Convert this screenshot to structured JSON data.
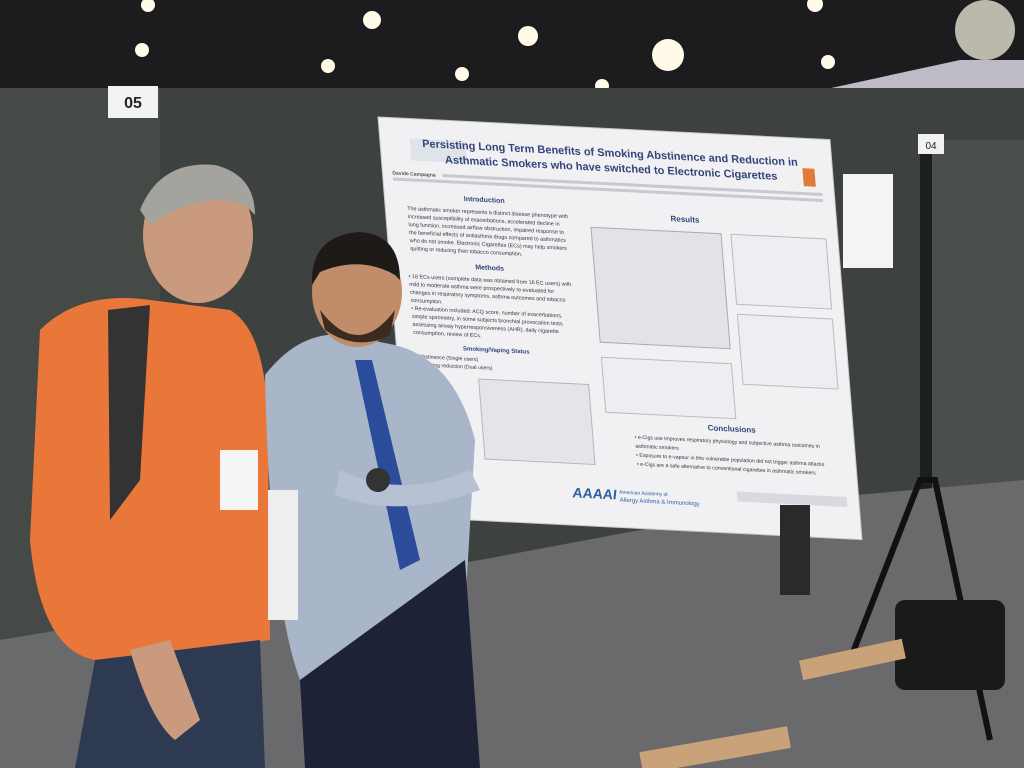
{
  "booth_numbers": [
    "05",
    "04"
  ],
  "poster": {
    "title_lines": [
      "Persisting Long Term Benefits of Smoking Abstinence and Reduction in",
      "Asthmatic Smokers who have switched to Electronic Cigarettes"
    ],
    "first_author": "Davide Campagna",
    "introduction": {
      "heading": "Introduction",
      "lines": [
        "The asthmatic smoker represents a distinct disease phenotype with",
        "increased susceptibility of exacerbations, accelerated decline in",
        "lung function, increased airflow obstruction, impaired response to",
        "the beneficial effects of antiasthma drugs compared to asthmatics",
        "who do not smoke. Electronic Cigarettes (ECs) may help smokers",
        "quitting or reducing their tobacco consumption."
      ]
    },
    "methods": {
      "heading": "Methods",
      "lines": [
        "• 18 ECs users (complete data was obtained from 16 EC users) with",
        "mild to moderate asthma were prospectively re-evaluated for",
        "changes in respiratory symptoms, asthma outcomes and tobacco",
        "consumption.",
        "• Re-evaluation included: ACQ score, number of exacerbations,",
        "simple spirometry, in some subjects bronchial provocation tests",
        "assessing airway hyperresponsiveness (AHR), daily cigarette",
        "consumption, review of ECs."
      ]
    },
    "smoking_status": {
      "heading": "Smoking/Vaping Status",
      "lines": [
        "Abstinence (Single users)",
        "Smoking reduction (Dual users)"
      ]
    },
    "results": {
      "heading": "Results"
    },
    "conclusions": {
      "heading": "Conclusions",
      "lines": [
        "• e-Cigs use improves respiratory physiology and subjective asthma outcomes in",
        "asthmatic smokers",
        "• Exposure to e-vapour in this vulnerable population did not trigger asthma attacks",
        "• e-Cigs are a safe alternative to conventional cigarettes in asthmatic smokers"
      ]
    },
    "logo": "AAAAI",
    "organization_lines": [
      "American Academy of",
      "Allergy Asthma & Immunology"
    ]
  }
}
